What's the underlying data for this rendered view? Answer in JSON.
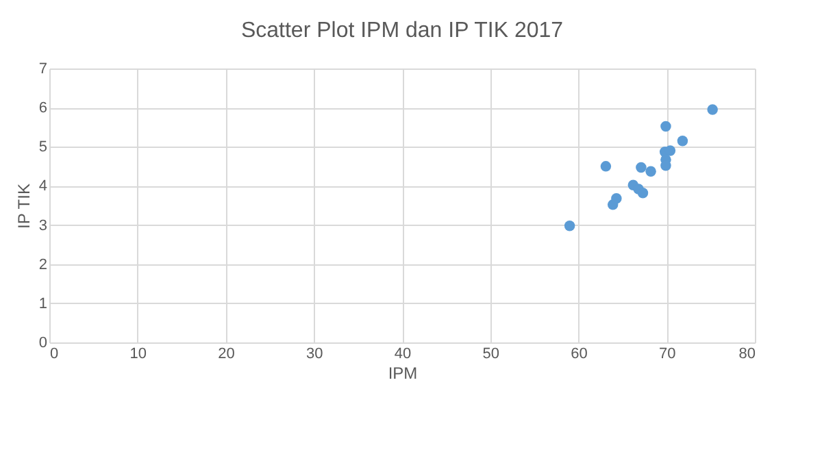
{
  "chart_data": {
    "type": "scatter",
    "title": "Scatter Plot IPM dan IP TIK 2017",
    "xlabel": "IPM",
    "ylabel": "IP TIK",
    "x": [
      59.0,
      63.1,
      63.9,
      64.3,
      66.2,
      66.8,
      67.3,
      67.1,
      68.2,
      69.9,
      69.8,
      70.4,
      69.9,
      69.9,
      71.8,
      75.2
    ],
    "series": [
      {
        "color": "#5b9bd5",
        "values": [
          2.98,
          4.5,
          3.52,
          3.68,
          4.02,
          3.92,
          3.82,
          4.47,
          4.37,
          5.52,
          4.87,
          4.9,
          4.67,
          4.52,
          5.15,
          5.95
        ]
      }
    ],
    "xlim": [
      0,
      80
    ],
    "xticks": [
      0,
      10,
      20,
      30,
      40,
      50,
      60,
      70,
      80
    ],
    "ylim": [
      0,
      7
    ],
    "yticks": [
      0,
      1,
      2,
      3,
      4,
      5,
      6,
      7
    ],
    "grid": true,
    "marker": "circle"
  }
}
